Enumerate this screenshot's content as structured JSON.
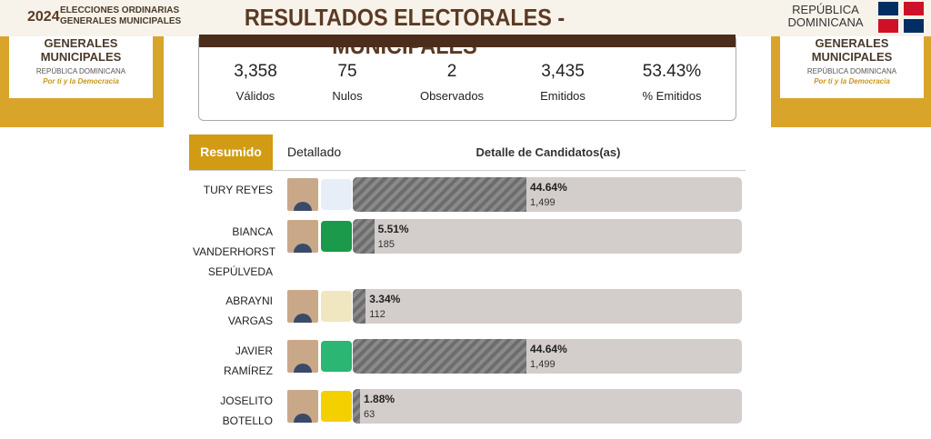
{
  "header": {
    "logo_year": "2024",
    "logo_line1": "ELECCIONES ORDINARIAS",
    "logo_line2": "GENERALES MUNICIPALES",
    "title": "RESULTADOS ELECTORALES - MUNICIPALES",
    "country": "REPÚBLICA DOMINICANA"
  },
  "side_panels": [
    {
      "title": "GENERALES MUNICIPALES",
      "subtitle": "REPÚBLICA DOMINICANA",
      "slogan": "Por ti y la Democracia"
    },
    {
      "title": "GENERALES MUNICIPALES",
      "subtitle": "REPÚBLICA DOMINICANA",
      "slogan": "Por ti y la Democracia"
    }
  ],
  "stats": [
    {
      "value": "3,358",
      "label": "Válidos"
    },
    {
      "value": "75",
      "label": "Nulos"
    },
    {
      "value": "2",
      "label": "Observados"
    },
    {
      "value": "3,435",
      "label": "Emitidos"
    },
    {
      "value": "53.43%",
      "label": "% Emitidos"
    }
  ],
  "tabs": [
    "Resumido",
    "Detallado"
  ],
  "section_title": "Detalle de Candidatos(as)",
  "candidates": [
    {
      "name": "TURY REYES",
      "percent": "44.64%",
      "votes": "1,499"
    },
    {
      "name": "BIANCA VANDERHORST SEPÚLVEDA",
      "percent": "5.51%",
      "votes": "185"
    },
    {
      "name": "ABRAYNI VARGAS",
      "percent": "3.34%",
      "votes": "112"
    },
    {
      "name": "JAVIER RAMÍREZ",
      "percent": "44.64%",
      "votes": "1,499"
    },
    {
      "name": "JOSELITO BOTELLO",
      "percent": "1.88%",
      "votes": "63"
    }
  ]
}
